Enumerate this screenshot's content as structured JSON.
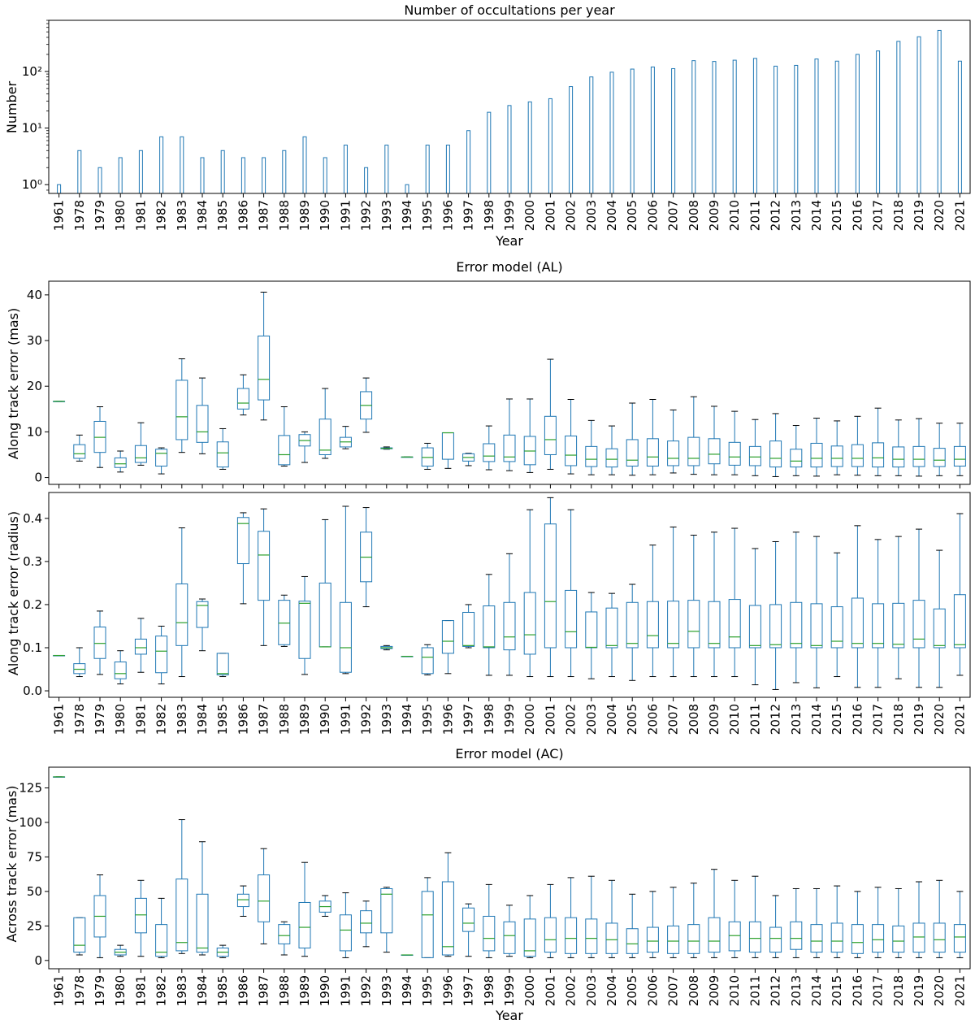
{
  "years": [
    "1961",
    "1978",
    "1979",
    "1980",
    "1981",
    "1982",
    "1983",
    "1984",
    "1985",
    "1986",
    "1987",
    "1988",
    "1989",
    "1990",
    "1991",
    "1992",
    "1993",
    "1994",
    "1995",
    "1996",
    "1997",
    "1998",
    "1999",
    "2000",
    "2001",
    "2002",
    "2003",
    "2004",
    "2005",
    "2006",
    "2007",
    "2008",
    "2009",
    "2010",
    "2011",
    "2012",
    "2013",
    "2014",
    "2015",
    "2016",
    "2017",
    "2018",
    "2019",
    "2020",
    "2021"
  ],
  "colors": {
    "bar": "#1f77b4",
    "box": "#1f77b4",
    "median": "#2ca02c",
    "whisker": "#1f77b4",
    "cap": "#000000",
    "axis": "#000000"
  },
  "chart_data": [
    {
      "type": "bar",
      "scale": "log",
      "title": "Number of occultations per year",
      "xlabel": "Year",
      "ylabel": "Number",
      "ylim": [
        0.7,
        800
      ],
      "yticks": [
        {
          "v": 1,
          "label": "10⁰"
        },
        {
          "v": 10,
          "label": "10¹"
        },
        {
          "v": 100,
          "label": "10²"
        }
      ],
      "values": [
        1,
        4,
        2,
        3,
        4,
        7,
        7,
        3,
        4,
        3,
        3,
        4,
        7,
        3,
        5,
        2,
        5,
        1,
        5,
        5,
        9,
        19,
        25,
        29,
        33,
        54,
        80,
        97,
        110,
        120,
        112,
        155,
        150,
        158,
        170,
        124,
        128,
        166,
        152,
        200,
        230,
        340,
        410,
        530,
        152
      ]
    },
    {
      "type": "box",
      "title": "Error model (AL)",
      "xlabel": "",
      "ylabel": "Along track error (mas)",
      "ylim": [
        -1.5,
        43
      ],
      "yticks": [
        {
          "v": 0,
          "label": "0"
        },
        {
          "v": 10,
          "label": "10"
        },
        {
          "v": 20,
          "label": "20"
        },
        {
          "v": 30,
          "label": "30"
        },
        {
          "v": 40,
          "label": "40"
        }
      ],
      "boxes": [
        [
          16.7,
          16.7,
          16.7,
          16.7,
          16.7
        ],
        [
          3.6,
          4.2,
          5.2,
          7.2,
          9.3
        ],
        [
          2.2,
          5.5,
          8.8,
          12.3,
          15.5
        ],
        [
          1.2,
          2.2,
          3.0,
          4.3,
          5.8
        ],
        [
          2.7,
          3.3,
          4.3,
          7.0,
          12.0
        ],
        [
          0.8,
          2.5,
          5.3,
          6.2,
          6.5
        ],
        [
          5.5,
          8.3,
          13.3,
          21.3,
          26.0
        ],
        [
          5.2,
          7.7,
          10.0,
          15.8,
          21.8
        ],
        [
          1.8,
          2.3,
          5.4,
          7.8,
          10.7
        ],
        [
          13.7,
          15.0,
          16.3,
          19.5,
          22.5
        ],
        [
          12.6,
          17.0,
          21.5,
          31.0,
          40.6
        ],
        [
          2.5,
          2.8,
          5.0,
          9.2,
          15.5
        ],
        [
          3.3,
          6.9,
          8.1,
          9.4,
          10.0
        ],
        [
          4.2,
          5.0,
          6.0,
          12.8,
          19.5
        ],
        [
          6.3,
          6.7,
          7.8,
          8.8,
          11.2
        ],
        [
          9.9,
          12.8,
          15.8,
          18.8,
          21.8
        ],
        [
          6.2,
          6.3,
          6.4,
          6.5,
          6.7
        ],
        [
          4.5,
          4.5,
          4.5,
          4.5,
          4.5
        ],
        [
          1.8,
          2.5,
          4.4,
          6.5,
          7.5
        ],
        [
          2.0,
          4.0,
          9.8,
          9.8,
          9.8
        ],
        [
          2.6,
          3.6,
          4.4,
          5.2,
          5.3
        ],
        [
          1.7,
          3.5,
          4.7,
          7.4,
          11.3
        ],
        [
          1.5,
          3.5,
          4.5,
          9.3,
          17.2
        ],
        [
          1.1,
          2.8,
          5.8,
          9.0,
          17.2
        ],
        [
          1.8,
          5.0,
          8.3,
          13.4,
          25.9
        ],
        [
          0.8,
          2.6,
          4.9,
          9.1,
          17.1
        ],
        [
          0.6,
          2.4,
          4.0,
          6.8,
          12.5
        ],
        [
          0.6,
          2.3,
          4.0,
          6.3,
          11.3
        ],
        [
          0.5,
          2.5,
          3.8,
          8.3,
          16.3
        ],
        [
          0.6,
          2.5,
          4.5,
          8.5,
          17.1
        ],
        [
          1.0,
          2.6,
          4.2,
          8.0,
          14.8
        ],
        [
          0.7,
          2.6,
          4.2,
          8.8,
          17.7
        ],
        [
          0.6,
          3.0,
          5.1,
          8.5,
          15.6
        ],
        [
          0.6,
          2.7,
          4.5,
          7.7,
          14.5
        ],
        [
          0.4,
          2.6,
          4.5,
          6.8,
          12.7
        ],
        [
          0.2,
          2.3,
          4.2,
          8.0,
          14.0
        ],
        [
          0.4,
          2.3,
          3.6,
          6.2,
          11.4
        ],
        [
          0.3,
          2.3,
          4.2,
          7.5,
          13.0
        ],
        [
          0.6,
          2.4,
          4.2,
          6.9,
          12.4
        ],
        [
          0.5,
          2.4,
          4.2,
          7.2,
          13.4
        ],
        [
          0.4,
          2.3,
          4.3,
          7.6,
          15.2
        ],
        [
          0.4,
          2.3,
          4.0,
          6.7,
          12.6
        ],
        [
          0.3,
          2.4,
          4.0,
          6.8,
          12.9
        ],
        [
          0.4,
          2.4,
          3.8,
          6.4,
          11.9
        ],
        [
          0.4,
          2.5,
          4.0,
          6.8,
          11.9
        ]
      ]
    },
    {
      "type": "box",
      "title": "",
      "xlabel": "",
      "ylabel": "Along track error (radius)",
      "ylim": [
        -0.015,
        0.46
      ],
      "yticks": [
        {
          "v": 0,
          "label": "0.0"
        },
        {
          "v": 0.1,
          "label": "0.1"
        },
        {
          "v": 0.2,
          "label": "0.2"
        },
        {
          "v": 0.3,
          "label": "0.3"
        },
        {
          "v": 0.4,
          "label": "0.4"
        }
      ],
      "boxes": [
        [
          0.082,
          0.082,
          0.082,
          0.082,
          0.082
        ],
        [
          0.033,
          0.04,
          0.05,
          0.063,
          0.1
        ],
        [
          0.038,
          0.075,
          0.11,
          0.148,
          0.185
        ],
        [
          0.016,
          0.028,
          0.04,
          0.067,
          0.093
        ],
        [
          0.043,
          0.085,
          0.1,
          0.12,
          0.168
        ],
        [
          0.016,
          0.042,
          0.092,
          0.127,
          0.15
        ],
        [
          0.033,
          0.105,
          0.158,
          0.248,
          0.378
        ],
        [
          0.093,
          0.147,
          0.198,
          0.207,
          0.213
        ],
        [
          0.033,
          0.037,
          0.04,
          0.087,
          0.087
        ],
        [
          0.202,
          0.295,
          0.388,
          0.402,
          0.413
        ],
        [
          0.105,
          0.21,
          0.315,
          0.37,
          0.422
        ],
        [
          0.103,
          0.107,
          0.157,
          0.21,
          0.222
        ],
        [
          0.038,
          0.075,
          0.203,
          0.208,
          0.265
        ],
        [
          0.102,
          0.102,
          0.102,
          0.25,
          0.397
        ],
        [
          0.04,
          0.043,
          0.1,
          0.205,
          0.428
        ],
        [
          0.195,
          0.253,
          0.31,
          0.368,
          0.425
        ],
        [
          0.095,
          0.098,
          0.1,
          0.103,
          0.105
        ],
        [
          0.08,
          0.08,
          0.08,
          0.08,
          0.08
        ],
        [
          0.037,
          0.04,
          0.078,
          0.1,
          0.107
        ],
        [
          0.04,
          0.087,
          0.115,
          0.163,
          0.163
        ],
        [
          0.1,
          0.103,
          0.105,
          0.182,
          0.2
        ],
        [
          0.036,
          0.1,
          0.102,
          0.197,
          0.27
        ],
        [
          0.036,
          0.095,
          0.125,
          0.205,
          0.318
        ],
        [
          0.033,
          0.085,
          0.13,
          0.228,
          0.42
        ],
        [
          0.033,
          0.1,
          0.207,
          0.387,
          0.448
        ],
        [
          0.033,
          0.1,
          0.137,
          0.233,
          0.42
        ],
        [
          0.028,
          0.1,
          0.101,
          0.183,
          0.228
        ],
        [
          0.033,
          0.1,
          0.105,
          0.192,
          0.226
        ],
        [
          0.024,
          0.1,
          0.11,
          0.205,
          0.247
        ],
        [
          0.033,
          0.1,
          0.128,
          0.207,
          0.338
        ],
        [
          0.033,
          0.1,
          0.11,
          0.208,
          0.38
        ],
        [
          0.033,
          0.1,
          0.138,
          0.21,
          0.361
        ],
        [
          0.033,
          0.1,
          0.11,
          0.207,
          0.368
        ],
        [
          0.033,
          0.1,
          0.125,
          0.212,
          0.377
        ],
        [
          0.014,
          0.1,
          0.105,
          0.198,
          0.33
        ],
        [
          0.003,
          0.1,
          0.107,
          0.2,
          0.346
        ],
        [
          0.019,
          0.1,
          0.11,
          0.205,
          0.368
        ],
        [
          0.007,
          0.1,
          0.105,
          0.202,
          0.358
        ],
        [
          0.033,
          0.1,
          0.115,
          0.195,
          0.32
        ],
        [
          0.008,
          0.1,
          0.11,
          0.215,
          0.383
        ],
        [
          0.008,
          0.1,
          0.11,
          0.202,
          0.351
        ],
        [
          0.028,
          0.1,
          0.108,
          0.203,
          0.358
        ],
        [
          0.008,
          0.1,
          0.12,
          0.21,
          0.375
        ],
        [
          0.008,
          0.1,
          0.105,
          0.19,
          0.326
        ],
        [
          0.036,
          0.1,
          0.107,
          0.223,
          0.411
        ]
      ]
    },
    {
      "type": "box",
      "title": "Error model (AC)",
      "xlabel": "Year",
      "ylabel": "Across track error (mas)",
      "ylim": [
        -6,
        140
      ],
      "yticks": [
        {
          "v": 0,
          "label": "0"
        },
        {
          "v": 25,
          "label": "25"
        },
        {
          "v": 50,
          "label": "50"
        },
        {
          "v": 75,
          "label": "75"
        },
        {
          "v": 100,
          "label": "100"
        },
        {
          "v": 125,
          "label": "125"
        }
      ],
      "boxes": [
        [
          133,
          133,
          133,
          133,
          133
        ],
        [
          4,
          6,
          11,
          31,
          31
        ],
        [
          2,
          17,
          32,
          47,
          62
        ],
        [
          3,
          4,
          6,
          8,
          11
        ],
        [
          3,
          20,
          33,
          45,
          58
        ],
        [
          2,
          3,
          6,
          26,
          45
        ],
        [
          5,
          7,
          13,
          59,
          102
        ],
        [
          4,
          6,
          9,
          48,
          86
        ],
        [
          2,
          3,
          6,
          9,
          11
        ],
        [
          32,
          39,
          44,
          48,
          54
        ],
        [
          12,
          28,
          43,
          62,
          81
        ],
        [
          4,
          12,
          18,
          26,
          28
        ],
        [
          3,
          9,
          24,
          42,
          71
        ],
        [
          32,
          35,
          39,
          43,
          47
        ],
        [
          2,
          7,
          22,
          33,
          49
        ],
        [
          10,
          20,
          27,
          36,
          43
        ],
        [
          6,
          20,
          48,
          52,
          53
        ],
        [
          4,
          4,
          4,
          4,
          4
        ],
        [
          2,
          2,
          33,
          50,
          60
        ],
        [
          3,
          4,
          10,
          57,
          78
        ],
        [
          3,
          21,
          27,
          38,
          41
        ],
        [
          2,
          7,
          16,
          32,
          55
        ],
        [
          3,
          5,
          18,
          28,
          40
        ],
        [
          2,
          3,
          7,
          30,
          47
        ],
        [
          2,
          6,
          15,
          31,
          55
        ],
        [
          2,
          5,
          16,
          31,
          60
        ],
        [
          2,
          5,
          16,
          30,
          61
        ],
        [
          2,
          5,
          15,
          27,
          58
        ],
        [
          2,
          5,
          12,
          23,
          48
        ],
        [
          2,
          6,
          14,
          24,
          50
        ],
        [
          2,
          5,
          14,
          25,
          53
        ],
        [
          2,
          5,
          14,
          26,
          56
        ],
        [
          2,
          6,
          14,
          31,
          66
        ],
        [
          2,
          7,
          18,
          28,
          58
        ],
        [
          2,
          6,
          16,
          28,
          61
        ],
        [
          2,
          6,
          16,
          24,
          47
        ],
        [
          2,
          8,
          16,
          28,
          52
        ],
        [
          2,
          6,
          14,
          26,
          52
        ],
        [
          2,
          6,
          14,
          27,
          54
        ],
        [
          2,
          5,
          13,
          26,
          50
        ],
        [
          2,
          6,
          15,
          26,
          53
        ],
        [
          2,
          6,
          14,
          25,
          52
        ],
        [
          2,
          6,
          17,
          27,
          57
        ],
        [
          2,
          6,
          15,
          27,
          58
        ],
        [
          2,
          6,
          17,
          26,
          50
        ]
      ]
    }
  ]
}
